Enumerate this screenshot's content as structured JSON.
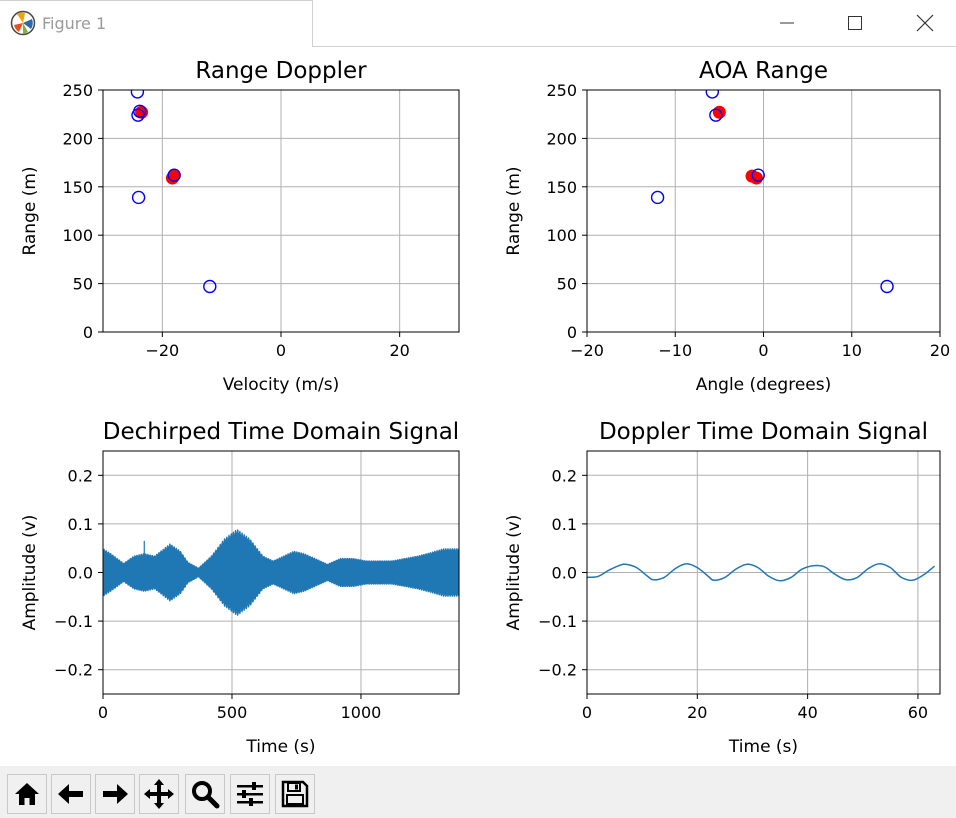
{
  "window": {
    "title": "Figure 1"
  },
  "toolbar": {
    "tools": [
      "home-icon",
      "back-icon",
      "forward-icon",
      "pan-icon",
      "zoom-icon",
      "configure-icon",
      "save-icon"
    ]
  },
  "chart_data": [
    {
      "type": "scatter",
      "title": "Range Doppler",
      "xlabel": "Velocity (m/s)",
      "ylabel": "Range (m)",
      "xlim": [
        -30,
        30
      ],
      "ylim": [
        0,
        250
      ],
      "xticks": [
        -20,
        0,
        20
      ],
      "xtick_labels": [
        "−20",
        "0",
        "20"
      ],
      "yticks": [
        0,
        50,
        100,
        150,
        200,
        250
      ],
      "grid": true,
      "series": [
        {
          "marker": "filled-circle",
          "color": "#ff0000",
          "x": [
            -23.5,
            -18.3,
            -18.1
          ],
          "y": [
            227,
            159,
            161
          ]
        },
        {
          "marker": "hollow-circle",
          "color": "#0000ff",
          "x": [
            -24.2,
            -24.1,
            -24.0,
            -23.8,
            -18.0,
            -12.0
          ],
          "y": [
            248,
            224,
            139,
            228,
            162,
            47
          ]
        }
      ]
    },
    {
      "type": "scatter",
      "title": "AOA Range",
      "xlabel": "Angle (degrees)",
      "ylabel": "Range (m)",
      "xlim": [
        -20,
        20
      ],
      "ylim": [
        0,
        250
      ],
      "xticks": [
        -20,
        -10,
        0,
        10,
        20
      ],
      "xtick_labels": [
        "−20",
        "−10",
        "0",
        "10",
        "20"
      ],
      "yticks": [
        0,
        50,
        100,
        150,
        200,
        250
      ],
      "grid": true,
      "series": [
        {
          "marker": "filled-circle",
          "color": "#ff0000",
          "x": [
            -5.0,
            -1.3,
            -0.8
          ],
          "y": [
            227,
            161,
            159
          ]
        },
        {
          "marker": "hollow-circle",
          "color": "#0000ff",
          "x": [
            -5.8,
            -5.4,
            -12.0,
            -0.6,
            14.0
          ],
          "y": [
            248,
            224,
            139,
            162,
            47
          ]
        }
      ]
    },
    {
      "type": "line",
      "title": "Dechirped Time Domain Signal",
      "xlabel": "Time (s)",
      "ylabel": "Amplitude (v)",
      "xlim": [
        0,
        1380
      ],
      "ylim": [
        -0.25,
        0.25
      ],
      "xticks": [
        0,
        500,
        1000
      ],
      "xtick_labels": [
        "0",
        "500",
        "1000"
      ],
      "yticks": [
        -0.2,
        -0.1,
        0.0,
        0.1,
        0.2
      ],
      "ytick_labels": [
        "−0.2",
        "−0.1",
        "0.0",
        "0.1",
        "0.2"
      ],
      "grid": true,
      "color": "#1f77b4",
      "envelope": {
        "x": [
          0,
          30,
          80,
          120,
          160,
          200,
          260,
          300,
          330,
          370,
          420,
          470,
          520,
          570,
          620,
          660,
          700,
          740,
          780,
          830,
          870,
          920,
          970,
          1020,
          1070,
          1120,
          1170,
          1220,
          1270,
          1320,
          1380
        ],
        "amp": [
          0.05,
          0.04,
          0.02,
          0.035,
          0.04,
          0.035,
          0.06,
          0.045,
          0.022,
          0.01,
          0.035,
          0.07,
          0.09,
          0.07,
          0.035,
          0.025,
          0.035,
          0.045,
          0.04,
          0.028,
          0.018,
          0.03,
          0.03,
          0.025,
          0.025,
          0.025,
          0.03,
          0.035,
          0.042,
          0.05,
          0.05
        ]
      },
      "spike": {
        "x": 160,
        "y": 0.065
      }
    },
    {
      "type": "line",
      "title": "Doppler Time Domain Signal",
      "xlabel": "Time (s)",
      "ylabel": "Amplitude (v)",
      "xlim": [
        0,
        64
      ],
      "ylim": [
        -0.25,
        0.25
      ],
      "xticks": [
        0,
        20,
        40,
        60
      ],
      "xtick_labels": [
        "0",
        "20",
        "40",
        "60"
      ],
      "yticks": [
        -0.2,
        -0.1,
        0.0,
        0.1,
        0.2
      ],
      "ytick_labels": [
        "−0.2",
        "−0.1",
        "0.0",
        "0.1",
        "0.2"
      ],
      "grid": true,
      "color": "#1f77b4",
      "x": [
        0,
        2,
        4,
        6,
        7,
        9,
        11,
        12,
        14,
        16,
        18,
        20,
        22,
        23,
        25,
        27,
        29,
        31,
        33,
        35,
        37,
        39,
        41,
        43,
        45,
        47,
        49,
        51,
        53,
        55,
        57,
        59,
        61,
        63
      ],
      "y": [
        -0.01,
        -0.008,
        0.005,
        0.015,
        0.017,
        0.01,
        -0.008,
        -0.015,
        -0.01,
        0.008,
        0.018,
        0.01,
        -0.008,
        -0.016,
        -0.01,
        0.007,
        0.017,
        0.01,
        -0.008,
        -0.017,
        -0.01,
        0.007,
        0.014,
        0.012,
        -0.004,
        -0.015,
        -0.01,
        0.008,
        0.018,
        0.01,
        -0.01,
        -0.016,
        -0.005,
        0.013
      ]
    }
  ]
}
